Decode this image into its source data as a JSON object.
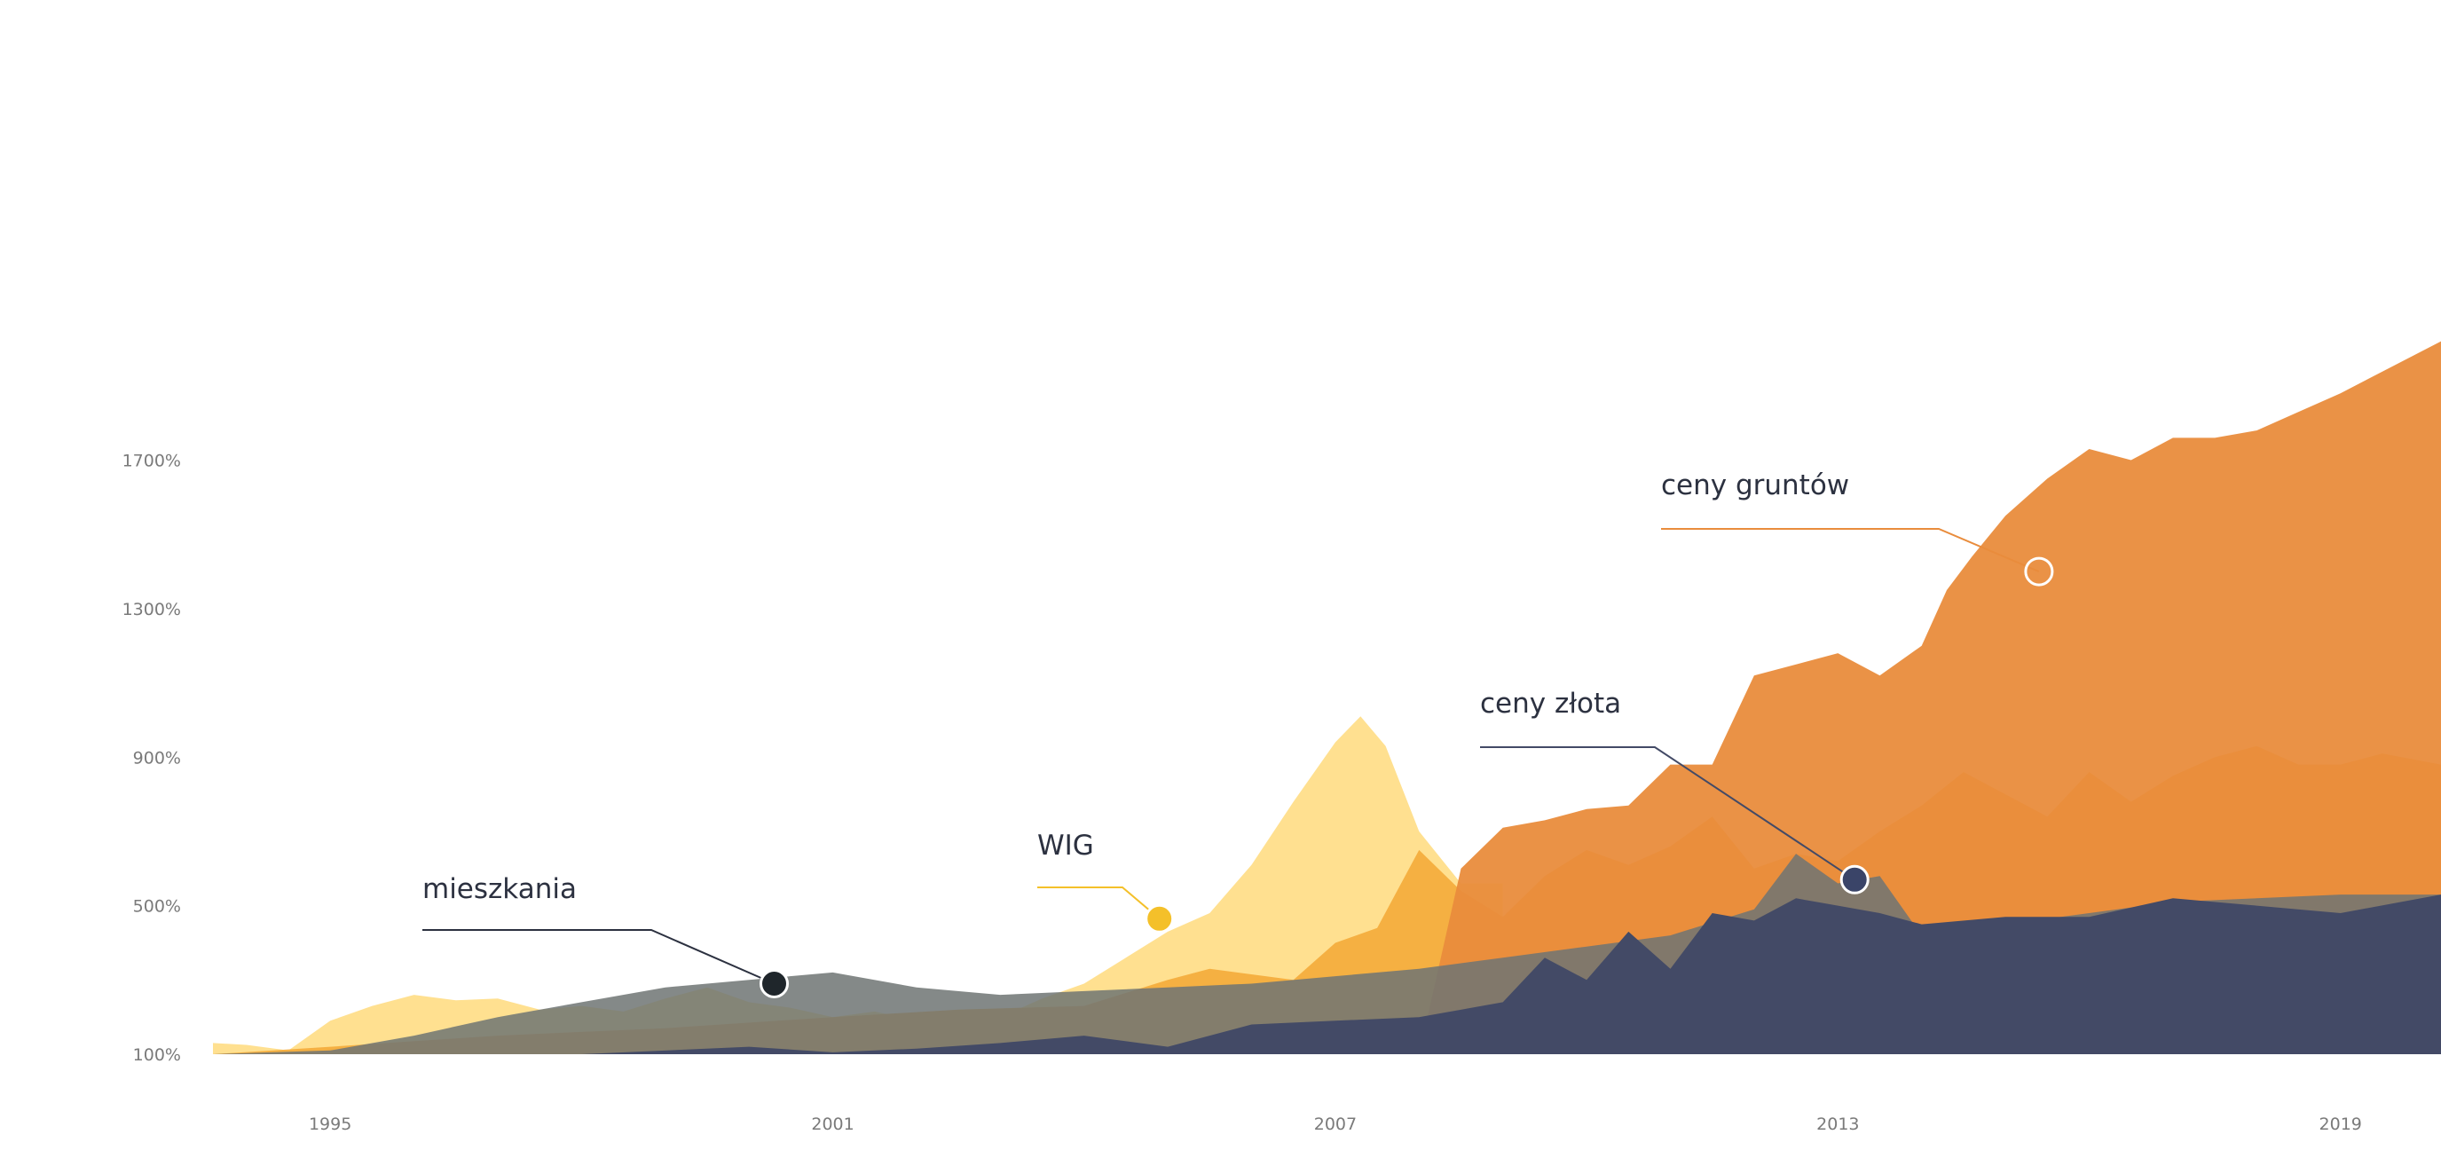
{
  "chart_data": {
    "type": "area",
    "title": "",
    "xlabel": "",
    "ylabel": "",
    "ylim": [
      100,
      2000
    ],
    "xlim": [
      1993.6,
      2020.2
    ],
    "y_ticks": [
      100,
      500,
      900,
      1300,
      1700
    ],
    "y_tick_labels": [
      "100%",
      "500%",
      "900%",
      "1300%",
      "1700%"
    ],
    "x_ticks": [
      1995,
      2001,
      2007,
      2013,
      2019
    ],
    "x_tick_labels": [
      "1995",
      "2001",
      "2007",
      "2013",
      "2019"
    ],
    "grid": false,
    "legend": "none",
    "series": [
      {
        "name": "WIG",
        "color": "#FFE090",
        "x": [
          1993.6,
          1994.0,
          1994.5,
          1995.0,
          1995.5,
          1996.0,
          1996.5,
          1997.0,
          1997.5,
          1998.0,
          1998.5,
          1999.0,
          1999.5,
          2000.0,
          2000.5,
          2001.0,
          2001.5,
          2002.0,
          2002.5,
          2003.0,
          2003.5,
          2004.0,
          2004.5,
          2005.0,
          2005.5,
          2006.0,
          2006.5,
          2007.0,
          2007.3,
          2007.6,
          2008.0,
          2008.5,
          2009.0
        ],
        "values": [
          130,
          125,
          110,
          190,
          230,
          260,
          245,
          250,
          220,
          230,
          215,
          250,
          280,
          240,
          225,
          200,
          215,
          190,
          180,
          200,
          250,
          290,
          360,
          430,
          480,
          610,
          780,
          940,
          1010,
          930,
          700,
          560,
          560
        ]
      },
      {
        "name": "",
        "color": "#F4AD3E",
        "x": [
          1993.6,
          1995.0,
          1997.0,
          1999.0,
          2001.0,
          2002.5,
          2004.0,
          2005.0,
          2005.5,
          2006.5,
          2007.0,
          2007.5,
          2008.0,
          2008.5,
          2009.0,
          2009.5,
          2010.0,
          2010.5,
          2011.0,
          2011.5,
          2012.0,
          2012.5,
          2013.0,
          2013.5,
          2014.0,
          2014.5,
          2015.0,
          2015.5,
          2016.0,
          2016.5,
          2017.0,
          2017.5,
          2018.0,
          2018.5,
          2019.0,
          2019.5,
          2020.2
        ],
        "values": [
          100,
          120,
          150,
          170,
          200,
          220,
          230,
          300,
          330,
          300,
          400,
          440,
          650,
          540,
          470,
          580,
          650,
          610,
          660,
          740,
          600,
          640,
          620,
          700,
          770,
          860,
          800,
          740,
          860,
          780,
          850,
          900,
          930,
          880,
          880,
          910,
          880
        ]
      },
      {
        "name": "ceny gruntów",
        "color": "#E98C3C",
        "x": [
          1993.6,
          1995.0,
          2000.0,
          2005.0,
          2008.0,
          2008.5,
          2009.0,
          2009.5,
          2010.0,
          2010.5,
          2011.0,
          2011.5,
          2012.0,
          2012.5,
          2013.0,
          2013.5,
          2014.0,
          2014.3,
          2014.6,
          2015.0,
          2015.5,
          2016.0,
          2016.5,
          2017.0,
          2017.5,
          2018.0,
          2018.5,
          2019.0,
          2020.2
        ],
        "values": [
          100,
          100,
          100,
          100,
          100,
          600,
          710,
          730,
          760,
          770,
          880,
          880,
          1120,
          1150,
          1180,
          1120,
          1200,
          1350,
          1440,
          1550,
          1650,
          1730,
          1700,
          1760,
          1760,
          1780,
          1830,
          1880,
          2020
        ]
      },
      {
        "name": "mieszkania",
        "color": "#6E7473",
        "x": [
          1993.6,
          1995.0,
          1996.0,
          1997.0,
          1998.0,
          1999.0,
          2000.0,
          2001.0,
          2002.0,
          2003.0,
          2004.0,
          2005.0,
          2006.0,
          2007.0,
          2008.0,
          2009.0,
          2010.0,
          2011.0,
          2012.0,
          2012.5,
          2013.0,
          2013.5,
          2014.0,
          2015.0,
          2016.0,
          2017.0,
          2018.0,
          2019.0,
          2020.2
        ],
        "values": [
          100,
          110,
          150,
          200,
          240,
          280,
          300,
          320,
          280,
          260,
          270,
          280,
          290,
          310,
          330,
          360,
          390,
          420,
          490,
          640,
          560,
          580,
          420,
          450,
          480,
          510,
          520,
          530,
          530
        ]
      },
      {
        "name": "ceny złota",
        "color": "#434A66",
        "x": [
          1993.6,
          1996.0,
          1998.0,
          2000.0,
          2001.0,
          2002.0,
          2003.0,
          2004.0,
          2005.0,
          2006.0,
          2007.0,
          2008.0,
          2009.0,
          2009.5,
          2010.0,
          2010.5,
          2011.0,
          2011.5,
          2012.0,
          2012.5,
          2013.0,
          2013.5,
          2014.0,
          2015.0,
          2016.0,
          2017.0,
          2018.0,
          2019.0,
          2020.2
        ],
        "values": [
          100,
          100,
          100,
          120,
          105,
          115,
          130,
          150,
          120,
          180,
          190,
          200,
          240,
          360,
          300,
          430,
          330,
          480,
          460,
          520,
          500,
          480,
          450,
          470,
          470,
          520,
          500,
          480,
          530
        ]
      }
    ],
    "annotations": [
      {
        "series": "mieszkania",
        "label": "mieszkania",
        "x": 2000.3,
        "y": 290
      },
      {
        "series": "WIG",
        "label": "WIG",
        "x": 2004.9,
        "y": 465
      },
      {
        "series": "ceny złota",
        "label": "ceny złota",
        "x": 2013.2,
        "y": 570
      },
      {
        "series": "ceny gruntów",
        "label": "ceny gruntów",
        "x": 2015.4,
        "y": 1400
      }
    ]
  }
}
